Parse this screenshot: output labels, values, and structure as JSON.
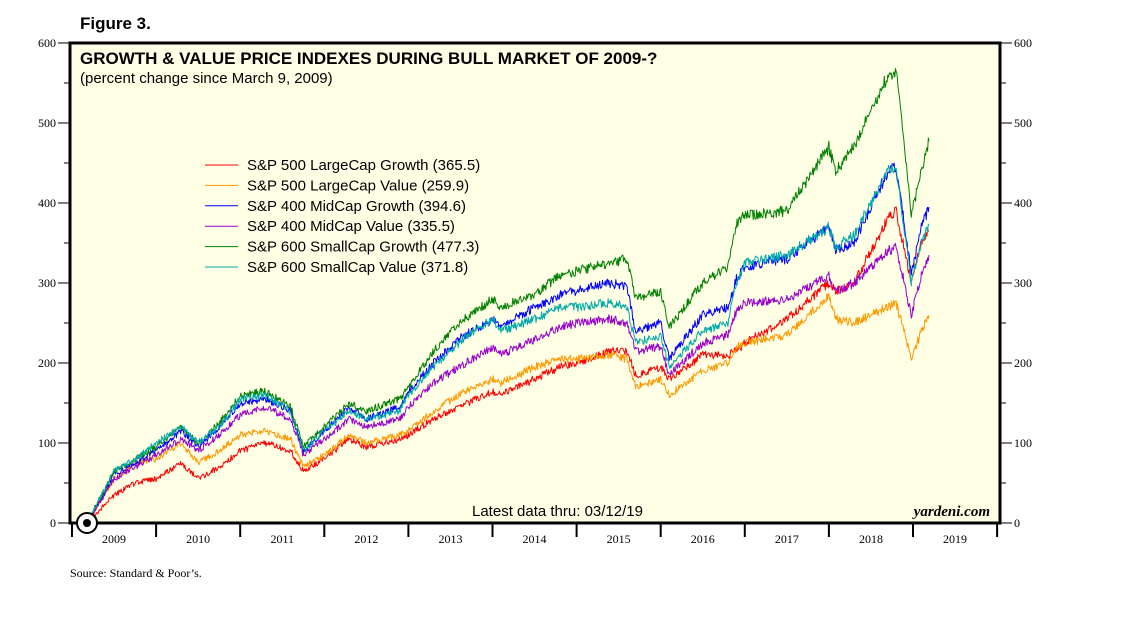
{
  "figure_label": "Figure 3.",
  "source": "Source: Standard & Poor’s.",
  "brand": "yardeni.com",
  "latest_note": "Latest data thru: 03/12/19",
  "colors": {
    "background": "#FFFFE6",
    "frame": "#000000"
  },
  "chart_data": {
    "type": "line",
    "title": "GROWTH & VALUE PRICE INDEXES DURING BULL MARKET OF 2009-?",
    "subtitle": "(percent change since March 9, 2009)",
    "xlabel": "",
    "ylabel": "",
    "ylim": [
      0,
      600
    ],
    "xlim": [
      2009.0,
      2020.0
    ],
    "y_ticks": [
      0,
      100,
      200,
      300,
      400,
      500,
      600
    ],
    "y_minor_step": 50,
    "x_tick_labels": [
      "2009",
      "2010",
      "2011",
      "2012",
      "2013",
      "2014",
      "2015",
      "2016",
      "2017",
      "2018",
      "2019"
    ],
    "grid": false,
    "legend_position": "upper-left",
    "x": [
      2009.18,
      2009.5,
      2009.75,
      2010.0,
      2010.3,
      2010.5,
      2010.75,
      2011.0,
      2011.3,
      2011.6,
      2011.75,
      2012.0,
      2012.3,
      2012.5,
      2012.9,
      2013.0,
      2013.3,
      2013.6,
      2014.0,
      2014.1,
      2014.5,
      2014.8,
      2015.0,
      2015.4,
      2015.6,
      2015.7,
      2016.0,
      2016.1,
      2016.5,
      2016.8,
      2016.9,
      2017.0,
      2017.5,
      2018.0,
      2018.08,
      2018.3,
      2018.7,
      2018.8,
      2018.98,
      2019.1,
      2019.19
    ],
    "series": [
      {
        "name": "S&P 500 LargeCap Growth",
        "latest": 365.5,
        "color": "#FF0000",
        "values": [
          0,
          35,
          50,
          55,
          75,
          55,
          70,
          90,
          100,
          90,
          65,
          80,
          105,
          95,
          105,
          110,
          130,
          145,
          165,
          160,
          180,
          195,
          200,
          215,
          215,
          185,
          195,
          180,
          210,
          210,
          215,
          225,
          255,
          300,
          290,
          300,
          380,
          390,
          300,
          350,
          365
        ]
      },
      {
        "name": "S&P 500 LargeCap Value",
        "latest": 259.9,
        "color": "#FF9900",
        "values": [
          0,
          55,
          75,
          80,
          100,
          75,
          90,
          110,
          115,
          105,
          70,
          85,
          110,
          100,
          110,
          115,
          140,
          160,
          180,
          175,
          195,
          205,
          205,
          210,
          205,
          170,
          180,
          160,
          190,
          200,
          220,
          225,
          235,
          285,
          255,
          250,
          270,
          275,
          205,
          240,
          260
        ]
      },
      {
        "name": "S&P 400 MidCap Growth",
        "latest": 394.6,
        "color": "#0000FF",
        "values": [
          0,
          60,
          75,
          90,
          115,
          95,
          120,
          150,
          155,
          140,
          90,
          115,
          145,
          130,
          145,
          165,
          200,
          230,
          255,
          245,
          270,
          285,
          290,
          300,
          295,
          240,
          250,
          205,
          260,
          270,
          305,
          320,
          330,
          370,
          340,
          350,
          440,
          445,
          310,
          370,
          395
        ]
      },
      {
        "name": "S&P 400 MidCap Value",
        "latest": 335.5,
        "color": "#9900CC",
        "values": [
          0,
          55,
          70,
          85,
          105,
          90,
          110,
          135,
          145,
          130,
          85,
          105,
          130,
          120,
          130,
          145,
          175,
          195,
          220,
          210,
          230,
          245,
          250,
          255,
          250,
          215,
          220,
          185,
          225,
          235,
          265,
          275,
          280,
          310,
          290,
          300,
          340,
          345,
          260,
          310,
          335
        ]
      },
      {
        "name": "S&P 600 SmallCap Growth",
        "latest": 477.3,
        "color": "#008000",
        "values": [
          0,
          65,
          80,
          95,
          120,
          100,
          125,
          160,
          165,
          145,
          95,
          120,
          150,
          140,
          155,
          170,
          215,
          250,
          280,
          270,
          285,
          310,
          315,
          325,
          330,
          280,
          290,
          245,
          300,
          320,
          375,
          385,
          390,
          470,
          440,
          470,
          560,
          565,
          385,
          440,
          477
        ]
      },
      {
        "name": "S&P 600 SmallCap Value",
        "latest": 371.8,
        "color": "#00AAAA",
        "values": [
          0,
          65,
          80,
          100,
          120,
          100,
          120,
          155,
          160,
          140,
          90,
          115,
          140,
          130,
          140,
          160,
          195,
          225,
          255,
          240,
          255,
          270,
          270,
          275,
          270,
          225,
          235,
          195,
          240,
          250,
          300,
          325,
          335,
          370,
          345,
          360,
          440,
          445,
          300,
          350,
          372
        ]
      }
    ]
  }
}
